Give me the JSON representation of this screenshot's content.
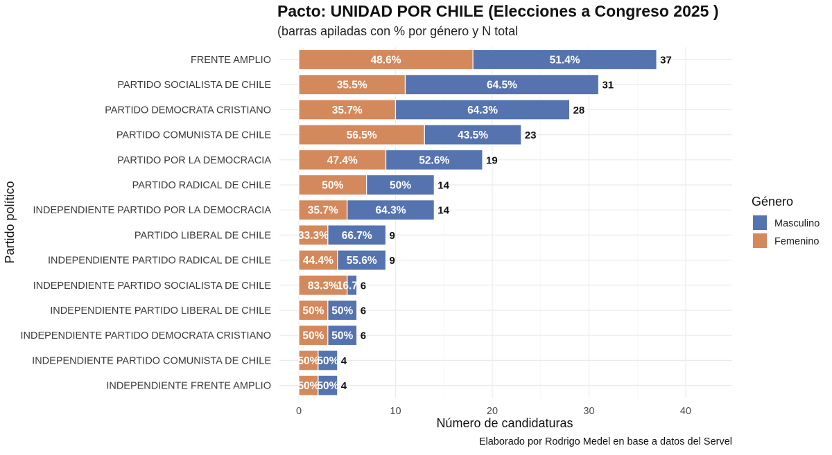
{
  "chart_data": {
    "type": "bar",
    "orientation": "horizontal",
    "stacked": true,
    "title": "Pacto: UNIDAD POR CHILE (Elecciones a Congreso 2025 )",
    "subtitle": "(barras apiladas con % por género y N total",
    "xlabel": "Número de candidaturas",
    "ylabel": "Partido político",
    "caption": "Elaborado por Rodrigo Medel en base a datos del Servel",
    "xlim": [
      0,
      45
    ],
    "xticks": [
      0,
      10,
      20,
      30,
      40
    ],
    "grid": true,
    "legend": {
      "title": "Género",
      "position": "right",
      "entries": [
        "Masculino",
        "Femenino"
      ]
    },
    "colors": {
      "Femenino": "#D4895C",
      "Masculino": "#5573AE"
    },
    "categories": [
      "FRENTE AMPLIO",
      "PARTIDO SOCIALISTA DE CHILE",
      "PARTIDO DEMOCRATA CRISTIANO",
      "PARTIDO COMUNISTA DE CHILE",
      "PARTIDO POR LA DEMOCRACIA",
      "PARTIDO RADICAL DE CHILE",
      "INDEPENDIENTE PARTIDO POR LA DEMOCRACIA",
      "PARTIDO LIBERAL DE CHILE",
      "INDEPENDIENTE PARTIDO RADICAL DE CHILE",
      "INDEPENDIENTE PARTIDO SOCIALISTA DE CHILE",
      "INDEPENDIENTE PARTIDO LIBERAL DE CHILE",
      "INDEPENDIENTE PARTIDO DEMOCRATA CRISTIANO",
      "INDEPENDIENTE PARTIDO COMUNISTA DE CHILE",
      "INDEPENDIENTE FRENTE AMPLIO"
    ],
    "series": [
      {
        "name": "Femenino",
        "values": [
          18,
          11,
          10,
          13,
          9,
          7,
          5,
          3,
          4,
          5,
          3,
          3,
          2,
          2
        ],
        "labels": [
          "48.6%",
          "35.5%",
          "35.7%",
          "56.5%",
          "47.4%",
          "50%",
          "35.7%",
          "33.3%",
          "44.4%",
          "83.3%",
          "50%",
          "50%",
          "50%",
          "50%"
        ]
      },
      {
        "name": "Masculino",
        "values": [
          19,
          20,
          18,
          10,
          10,
          7,
          9,
          6,
          5,
          1,
          3,
          3,
          2,
          2
        ],
        "labels": [
          "51.4%",
          "64.5%",
          "64.3%",
          "43.5%",
          "52.6%",
          "50%",
          "64.3%",
          "66.7%",
          "55.6%",
          "16.7%",
          "50%",
          "50%",
          "50%",
          "50%"
        ]
      }
    ],
    "totals": [
      37,
      31,
      28,
      23,
      19,
      14,
      14,
      9,
      9,
      6,
      6,
      6,
      4,
      4
    ]
  }
}
